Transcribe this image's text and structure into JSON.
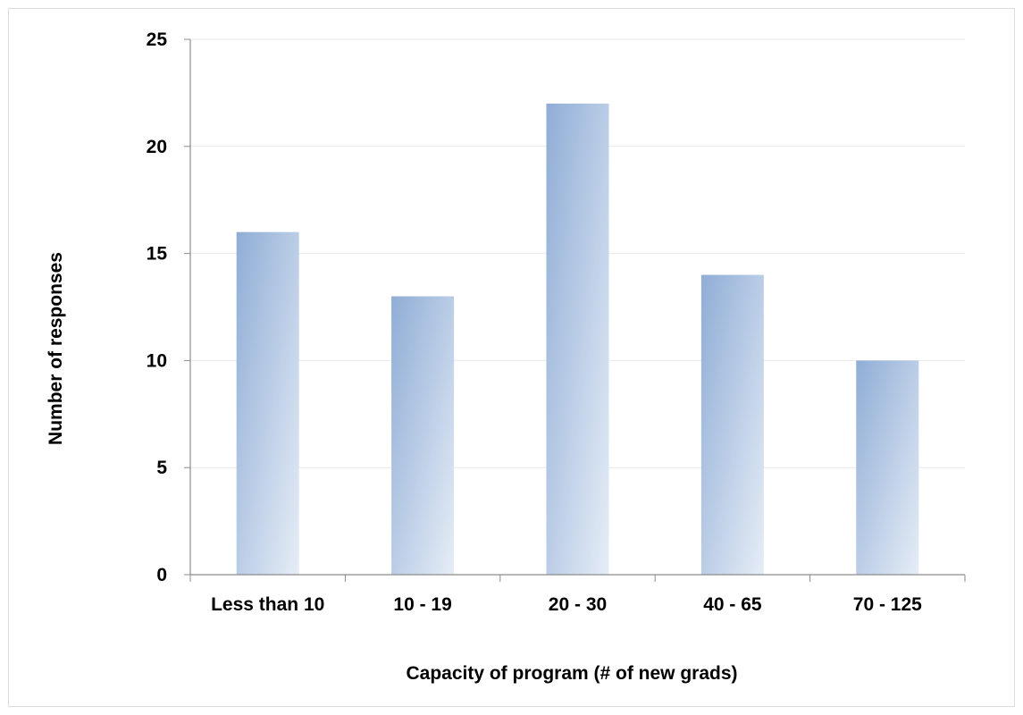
{
  "chart_data": {
    "type": "bar",
    "categories": [
      "Less than 10",
      "10 - 19",
      "20 - 30",
      "40 - 65",
      "70 - 125"
    ],
    "values": [
      16,
      13,
      22,
      14,
      10
    ],
    "xlabel": "Capacity of program (# of new grads)",
    "ylabel": "Number of responses",
    "ylim": [
      0,
      25
    ],
    "yticks": [
      0,
      5,
      10,
      15,
      20,
      25
    ],
    "grid": true,
    "legend": "none",
    "colors": {
      "bar_dark": "#8fadd6",
      "bar_light": "#e6edf6",
      "gridline": "#e6e9ed",
      "axis": "#8c8c8c"
    }
  }
}
